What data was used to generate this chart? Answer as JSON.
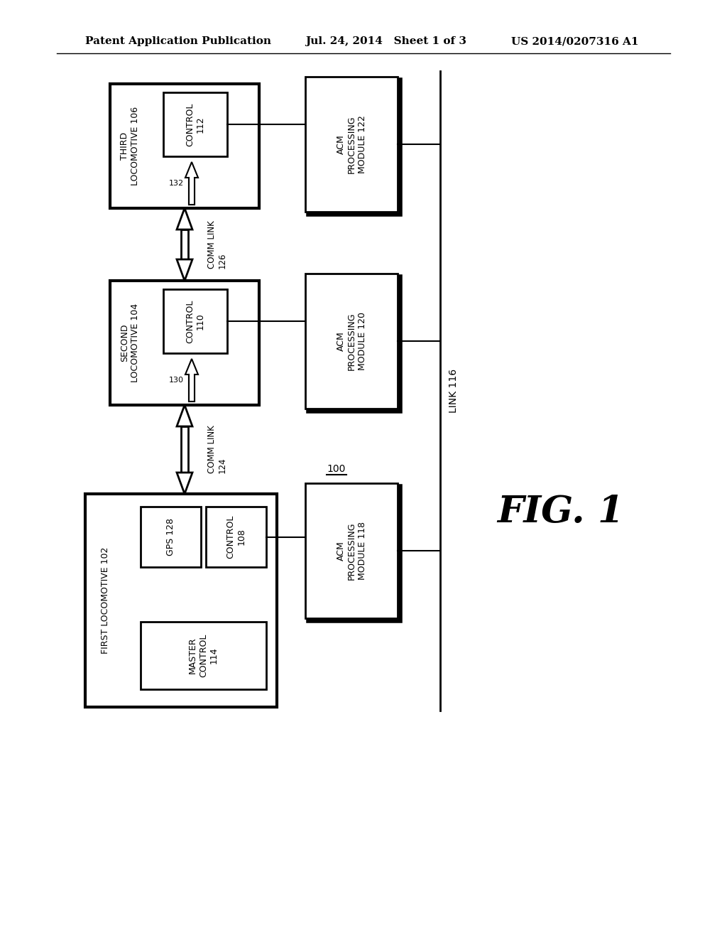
{
  "title_left": "Patent Application Publication",
  "title_mid": "Jul. 24, 2014   Sheet 1 of 3",
  "title_right": "US 2014/0207316 A1",
  "fig_label": "FIG. 1",
  "bg_color": "#ffffff"
}
